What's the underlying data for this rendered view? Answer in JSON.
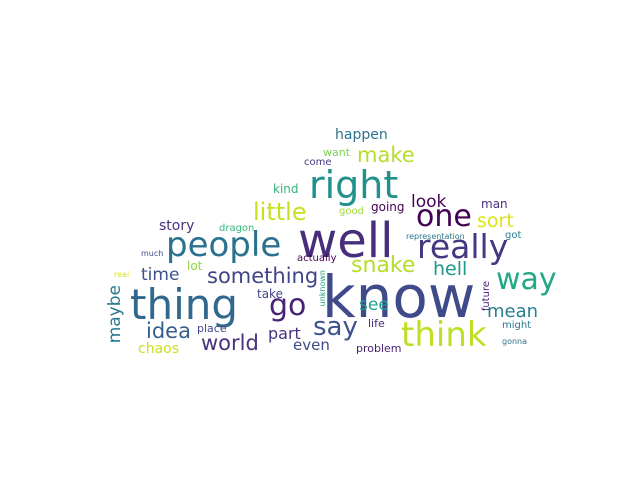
{
  "words": [
    {
      "text": "know",
      "color": "#3e4a89",
      "orientation": "horizontal"
    },
    {
      "text": "well",
      "color": "#472d7b",
      "orientation": "horizontal"
    },
    {
      "text": "thing",
      "color": "#31688e",
      "orientation": "horizontal"
    },
    {
      "text": "people",
      "color": "#2c728e",
      "orientation": "horizontal"
    },
    {
      "text": "right",
      "color": "#21918c",
      "orientation": "horizontal"
    },
    {
      "text": "think",
      "color": "#bddf26",
      "orientation": "horizontal"
    },
    {
      "text": "really",
      "color": "#453882",
      "orientation": "horizontal"
    },
    {
      "text": "one",
      "color": "#440154",
      "orientation": "horizontal"
    },
    {
      "text": "way",
      "color": "#22a884",
      "orientation": "horizontal"
    },
    {
      "text": "go",
      "color": "#482475",
      "orientation": "horizontal"
    },
    {
      "text": "say",
      "color": "#3b528b",
      "orientation": "horizontal"
    },
    {
      "text": "little",
      "color": "#c8e020",
      "orientation": "horizontal"
    },
    {
      "text": "something",
      "color": "#414487",
      "orientation": "horizontal"
    },
    {
      "text": "snake",
      "color": "#b5de2b",
      "orientation": "horizontal"
    },
    {
      "text": "make",
      "color": "#b5de2b",
      "orientation": "horizontal"
    },
    {
      "text": "world",
      "color": "#46327e",
      "orientation": "horizontal"
    },
    {
      "text": "idea",
      "color": "#355f8d",
      "orientation": "horizontal"
    },
    {
      "text": "look",
      "color": "#440154",
      "orientation": "horizontal"
    },
    {
      "text": "sort",
      "color": "#dde318",
      "orientation": "horizontal"
    },
    {
      "text": "hell",
      "color": "#1f988b",
      "orientation": "horizontal"
    },
    {
      "text": "mean",
      "color": "#27808e",
      "orientation": "horizontal"
    },
    {
      "text": "time",
      "color": "#3b528b",
      "orientation": "horizontal"
    },
    {
      "text": "maybe",
      "color": "#2a788e",
      "orientation": "vertical"
    },
    {
      "text": "see",
      "color": "#1fa187",
      "orientation": "horizontal"
    },
    {
      "text": "part",
      "color": "#46327e",
      "orientation": "horizontal"
    },
    {
      "text": "even",
      "color": "#3e4a89",
      "orientation": "horizontal"
    },
    {
      "text": "chaos",
      "color": "#c8e020",
      "orientation": "horizontal"
    },
    {
      "text": "happen",
      "color": "#2c728e",
      "orientation": "horizontal"
    },
    {
      "text": "story",
      "color": "#46327e",
      "orientation": "horizontal"
    },
    {
      "text": "want",
      "color": "#7ad151",
      "orientation": "horizontal"
    },
    {
      "text": "kind",
      "color": "#31b57b",
      "orientation": "horizontal"
    },
    {
      "text": "going",
      "color": "#440154",
      "orientation": "horizontal"
    },
    {
      "text": "man",
      "color": "#46327e",
      "orientation": "horizontal"
    },
    {
      "text": "take",
      "color": "#404688",
      "orientation": "horizontal"
    },
    {
      "text": "dragon",
      "color": "#35b779",
      "orientation": "horizontal"
    },
    {
      "text": "lot",
      "color": "#90d743",
      "orientation": "horizontal"
    },
    {
      "text": "place",
      "color": "#414487",
      "orientation": "horizontal"
    },
    {
      "text": "life",
      "color": "#482878",
      "orientation": "horizontal"
    },
    {
      "text": "problem",
      "color": "#481f70",
      "orientation": "horizontal"
    },
    {
      "text": "come",
      "color": "#433e85",
      "orientation": "horizontal"
    },
    {
      "text": "good",
      "color": "#a0da39",
      "orientation": "horizontal"
    },
    {
      "text": "actually",
      "color": "#440154",
      "orientation": "horizontal"
    },
    {
      "text": "got",
      "color": "#287c8e",
      "orientation": "horizontal"
    },
    {
      "text": "future",
      "color": "#482475",
      "orientation": "vertical"
    },
    {
      "text": "might",
      "color": "#2a788e",
      "orientation": "horizontal"
    },
    {
      "text": "representation",
      "color": "#2a788e",
      "orientation": "horizontal"
    },
    {
      "text": "unknown",
      "color": "#1fa187",
      "orientation": "vertical"
    },
    {
      "text": "much",
      "color": "#3b528b",
      "orientation": "horizontal"
    },
    {
      "text": "real",
      "color": "#dde318",
      "orientation": "horizontal"
    },
    {
      "text": "gonna",
      "color": "#2c728e",
      "orientation": "horizontal"
    }
  ]
}
